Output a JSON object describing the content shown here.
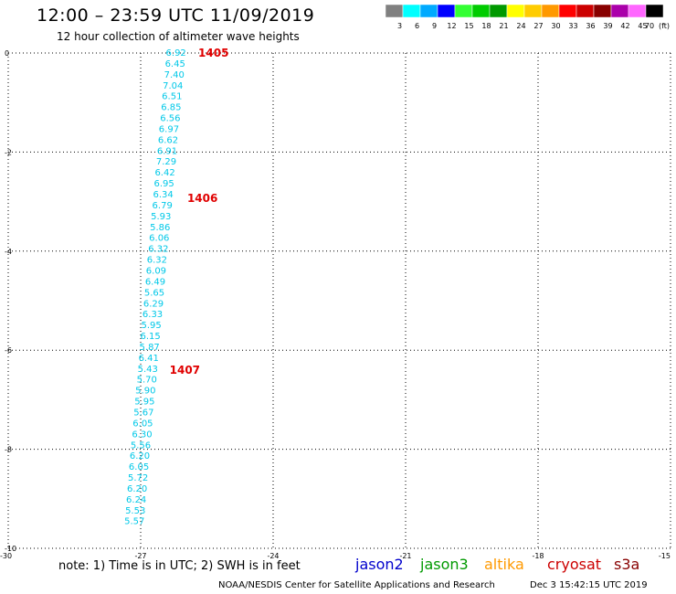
{
  "title": "12:00 – 23:59 UTC 11/09/2019",
  "subtitle": "12 hour collection of altimeter wave heights",
  "color_key": {
    "unit": "(ft)",
    "bins": [
      {
        "label": "3",
        "color": "#808080"
      },
      {
        "label": "6",
        "color": "#00ffff"
      },
      {
        "label": "9",
        "color": "#00aaff"
      },
      {
        "label": "12",
        "color": "#0000ff"
      },
      {
        "label": "15",
        "color": "#33ff33"
      },
      {
        "label": "18",
        "color": "#00cc00"
      },
      {
        "label": "21",
        "color": "#009900"
      },
      {
        "label": "24",
        "color": "#ffff00"
      },
      {
        "label": "27",
        "color": "#ffcc00"
      },
      {
        "label": "30",
        "color": "#ff9900"
      },
      {
        "label": "33",
        "color": "#ff0000"
      },
      {
        "label": "36",
        "color": "#cc0000"
      },
      {
        "label": "39",
        "color": "#880000"
      },
      {
        "label": "42",
        "color": "#aa00aa"
      },
      {
        "label": "45",
        "color": "#ff66ff"
      },
      {
        "label": "70",
        "color": "#000000"
      }
    ]
  },
  "chart_data": {
    "type": "scatter",
    "xlim": [
      -30,
      -15
    ],
    "ylim": [
      -10,
      0
    ],
    "xticks": [
      "-30",
      "-27",
      "-24",
      "-21",
      "-18",
      "-15"
    ],
    "yticks": [
      "0",
      "-2",
      "-4",
      "-6",
      "-8",
      "-10"
    ],
    "grid": true,
    "point_color": "#00c8e8",
    "pass_color": "#e00000",
    "points": [
      {
        "x": -26.2,
        "y": 0.0,
        "label": "6.92"
      },
      {
        "x": -26.22,
        "y": -0.22,
        "label": "6.45"
      },
      {
        "x": -26.24,
        "y": -0.44,
        "label": "7.40"
      },
      {
        "x": -26.27,
        "y": -0.66,
        "label": "7.04"
      },
      {
        "x": -26.29,
        "y": -0.88,
        "label": "6.51"
      },
      {
        "x": -26.31,
        "y": -1.1,
        "label": "6.85"
      },
      {
        "x": -26.33,
        "y": -1.32,
        "label": "6.56"
      },
      {
        "x": -26.36,
        "y": -1.54,
        "label": "6.97"
      },
      {
        "x": -26.38,
        "y": -1.76,
        "label": "6.62"
      },
      {
        "x": -26.4,
        "y": -1.98,
        "label": "6.91"
      },
      {
        "x": -26.42,
        "y": -2.2,
        "label": "7.29"
      },
      {
        "x": -26.45,
        "y": -2.42,
        "label": "6.42"
      },
      {
        "x": -26.47,
        "y": -2.64,
        "label": "6.95"
      },
      {
        "x": -26.49,
        "y": -2.86,
        "label": "6.34"
      },
      {
        "x": -26.51,
        "y": -3.08,
        "label": "6.79"
      },
      {
        "x": -26.54,
        "y": -3.3,
        "label": "5.93"
      },
      {
        "x": -26.56,
        "y": -3.52,
        "label": "5.86"
      },
      {
        "x": -26.58,
        "y": -3.74,
        "label": "6.06"
      },
      {
        "x": -26.6,
        "y": -3.96,
        "label": "6.32"
      },
      {
        "x": -26.63,
        "y": -4.18,
        "label": "6.32"
      },
      {
        "x": -26.65,
        "y": -4.4,
        "label": "6.09"
      },
      {
        "x": -26.67,
        "y": -4.62,
        "label": "6.49"
      },
      {
        "x": -26.69,
        "y": -4.84,
        "label": "5.65"
      },
      {
        "x": -26.71,
        "y": -5.06,
        "label": "6.29"
      },
      {
        "x": -26.73,
        "y": -5.28,
        "label": "6.33"
      },
      {
        "x": -26.76,
        "y": -5.5,
        "label": "5.95"
      },
      {
        "x": -26.78,
        "y": -5.72,
        "label": "6.15"
      },
      {
        "x": -26.8,
        "y": -5.94,
        "label": "5.87"
      },
      {
        "x": -26.82,
        "y": -6.16,
        "label": "6.41"
      },
      {
        "x": -26.84,
        "y": -6.38,
        "label": "5.43"
      },
      {
        "x": -26.86,
        "y": -6.6,
        "label": "5.70"
      },
      {
        "x": -26.89,
        "y": -6.82,
        "label": "5.90"
      },
      {
        "x": -26.91,
        "y": -7.04,
        "label": "5.95"
      },
      {
        "x": -26.93,
        "y": -7.26,
        "label": "5.67"
      },
      {
        "x": -26.95,
        "y": -7.48,
        "label": "6.05"
      },
      {
        "x": -26.97,
        "y": -7.7,
        "label": "6.30"
      },
      {
        "x": -27.0,
        "y": -7.92,
        "label": "5.56"
      },
      {
        "x": -27.02,
        "y": -8.14,
        "label": "6.20"
      },
      {
        "x": -27.04,
        "y": -8.36,
        "label": "6.05"
      },
      {
        "x": -27.06,
        "y": -8.58,
        "label": "5.72"
      },
      {
        "x": -27.08,
        "y": -8.8,
        "label": "6.20"
      },
      {
        "x": -27.1,
        "y": -9.02,
        "label": "6.24"
      },
      {
        "x": -27.12,
        "y": -9.24,
        "label": "5.53"
      },
      {
        "x": -27.14,
        "y": -9.46,
        "label": "5.57"
      }
    ],
    "pass_labels": [
      {
        "x": -25.35,
        "y": 0.0,
        "text": "1405"
      },
      {
        "x": -25.6,
        "y": -2.93,
        "text": "1406"
      },
      {
        "x": -26.0,
        "y": -6.4,
        "text": "1407"
      }
    ]
  },
  "note": "note: 1) Time is in UTC; 2) SWH is in feet",
  "satellites": [
    {
      "name": "jason2",
      "color": "#0000cc"
    },
    {
      "name": "jason3",
      "color": "#009900"
    },
    {
      "name": "altika",
      "color": "#ff9900"
    },
    {
      "name": "cryosat",
      "color": "#cc0000"
    },
    {
      "name": "s3a",
      "color": "#880000"
    }
  ],
  "footer": {
    "source": "NOAA/NESDIS Center for Satellite Applications and Research",
    "timestamp": "Dec  3 15:42:15 UTC 2019"
  }
}
